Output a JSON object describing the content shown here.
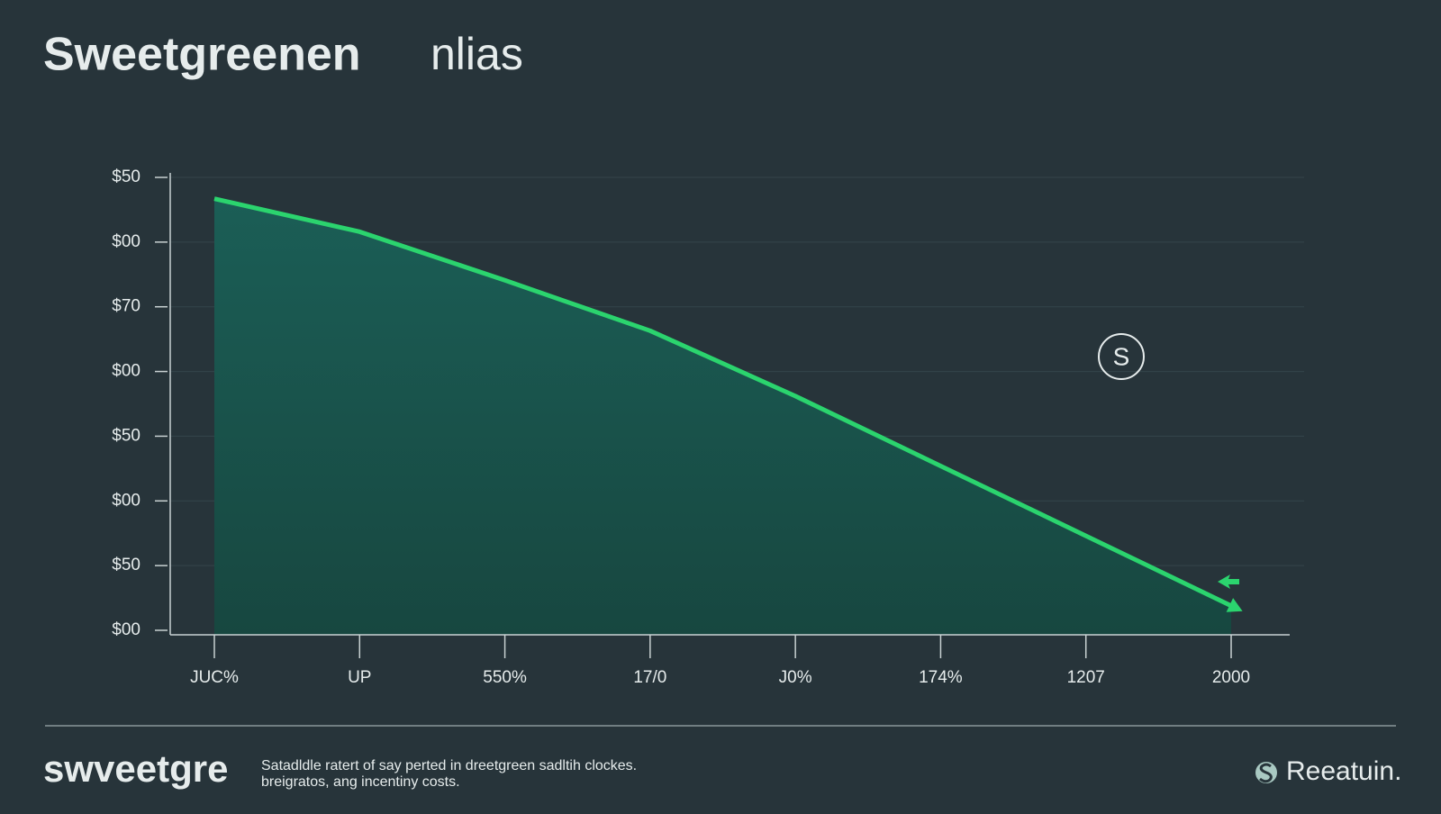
{
  "chart_data": {
    "type": "area",
    "title": "Sweetgreenen",
    "subtitle": "nlias",
    "categories": [
      "JUC%",
      "UP",
      "550%",
      "17/0",
      "J0%",
      "174%",
      "1207",
      "2000"
    ],
    "values": [
      6.67,
      6.16,
      5.41,
      4.63,
      3.62,
      2.54,
      1.46,
      0.38
    ],
    "color": "#2bd46e",
    "ylim": [
      0,
      7
    ],
    "yticks": [
      {
        "value": 0,
        "label": "$00"
      },
      {
        "value": 1,
        "label": "$50"
      },
      {
        "value": 2,
        "label": "$00"
      },
      {
        "value": 3,
        "label": "$50"
      },
      {
        "value": 4,
        "label": "$00"
      },
      {
        "value": 5,
        "label": "$70"
      },
      {
        "value": 6,
        "label": "$00"
      },
      {
        "value": 7,
        "label": "$50"
      }
    ],
    "grid": true,
    "annotation": "S"
  },
  "footer": {
    "brand": "swveetgre",
    "description_lines": [
      "Satadldle ratert of say perted in dreetgreen sadltih clockes.",
      "breigratos, ang incentiny costs."
    ],
    "source": "Reeatuin."
  }
}
